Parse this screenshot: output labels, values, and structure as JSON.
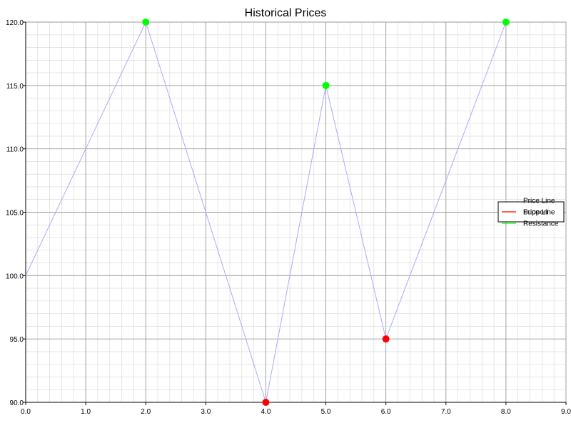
{
  "chart_data": {
    "type": "line",
    "title": "Historical Prices",
    "xlabel": "",
    "ylabel": "",
    "xlim": [
      0,
      9
    ],
    "ylim": [
      90,
      120
    ],
    "x_ticks": [
      0,
      1,
      2,
      3,
      4,
      5,
      6,
      7,
      8,
      9
    ],
    "x_tick_labels": [
      "0.0",
      "1.0",
      "2.0",
      "3.0",
      "4.0",
      "5.0",
      "6.0",
      "7.0",
      "8.0",
      "9.0"
    ],
    "y_ticks": [
      90,
      95,
      100,
      105,
      110,
      115,
      120
    ],
    "y_tick_labels": [
      "90.0",
      "95.0",
      "100.0",
      "105.0",
      "110.0",
      "115.0",
      "120.0"
    ],
    "grid": true,
    "minor_grid": true,
    "legend_position": "right",
    "series": [
      {
        "name": "Price Line",
        "kind": "line",
        "color": "#aaaaff",
        "points": [
          {
            "x": 0,
            "y": 100
          },
          {
            "x": 2,
            "y": 120
          },
          {
            "x": 4,
            "y": 90
          },
          {
            "x": 5,
            "y": 115
          },
          {
            "x": 6,
            "y": 95
          },
          {
            "x": 8,
            "y": 120
          }
        ]
      },
      {
        "name": "Support",
        "kind": "markers",
        "color": "#ff0000",
        "points": [
          {
            "x": 4,
            "y": 90
          },
          {
            "x": 6,
            "y": 95
          }
        ]
      },
      {
        "name": "Resistance",
        "kind": "markers",
        "color": "#00ff00",
        "points": [
          {
            "x": 2,
            "y": 120
          },
          {
            "x": 5,
            "y": 115
          },
          {
            "x": 8,
            "y": 120
          }
        ]
      }
    ],
    "legend": [
      {
        "label": "Price Line",
        "color": "#ffffff"
      },
      {
        "label": "Support",
        "overlay_label": "Price Line",
        "color": "#ff0000"
      },
      {
        "label": "Resistance",
        "color": "#00ff00"
      }
    ]
  }
}
